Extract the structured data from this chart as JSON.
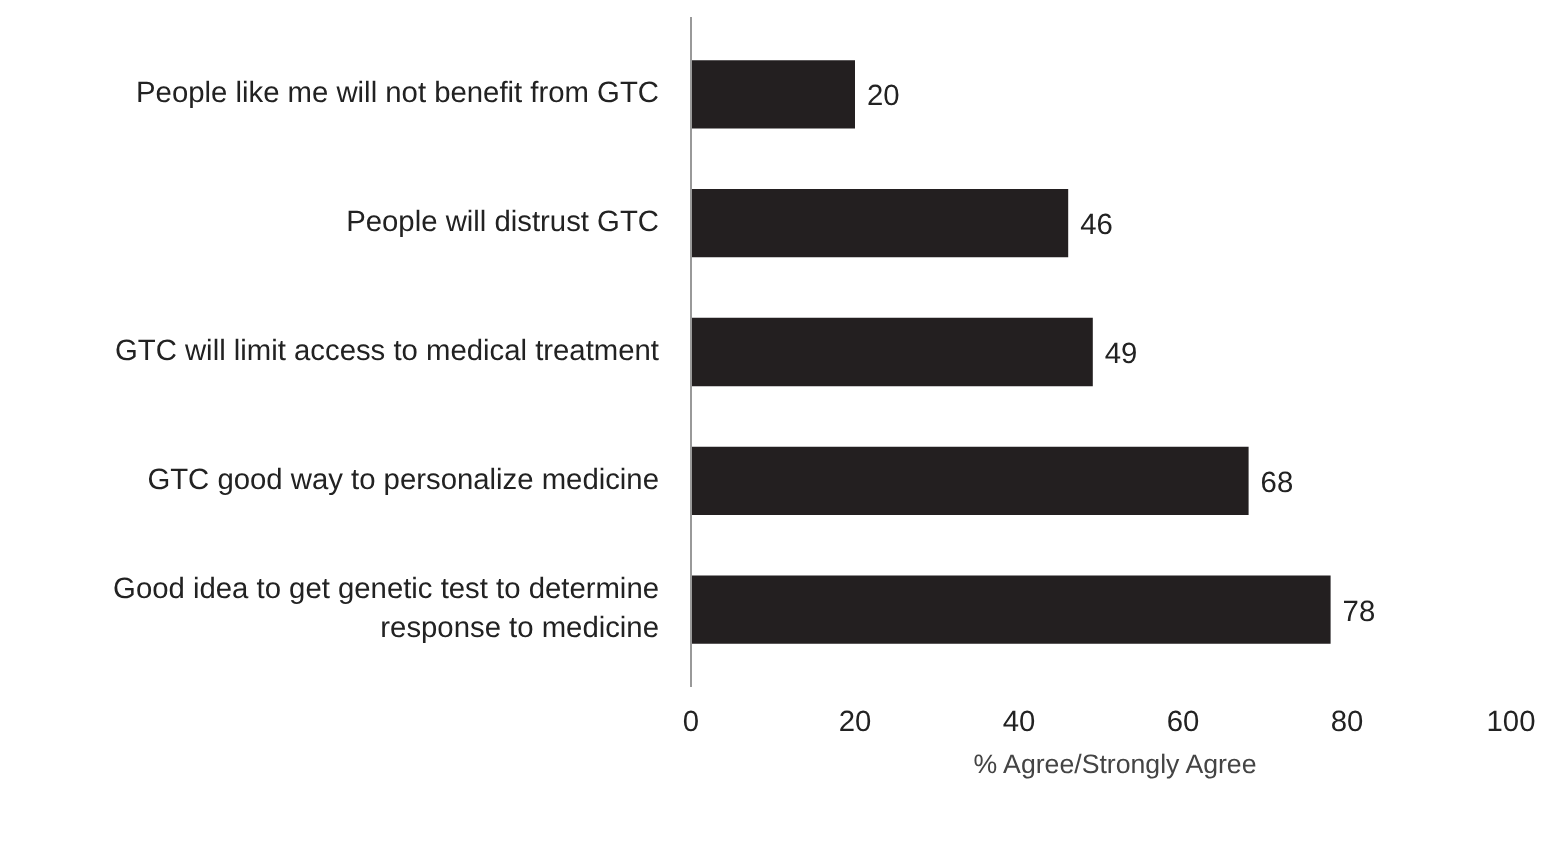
{
  "chart_data": {
    "type": "bar",
    "orientation": "horizontal",
    "categories": [
      "People like me will not benefit from GTC",
      "People will distrust GTC",
      "GTC will limit access to medical treatment",
      "GTC good way to personalize medicine",
      "Good idea to get genetic test to determine\nresponse to medicine"
    ],
    "series": [
      {
        "name": "% Agree/Strongly Agree",
        "color": "#231f20",
        "values": [
          20,
          46,
          49,
          68,
          78
        ]
      }
    ],
    "xlim": [
      0,
      100
    ],
    "xticks": [
      0,
      20,
      40,
      60,
      80,
      100
    ],
    "data_labels": true,
    "legend": "bottom",
    "grid": false
  }
}
